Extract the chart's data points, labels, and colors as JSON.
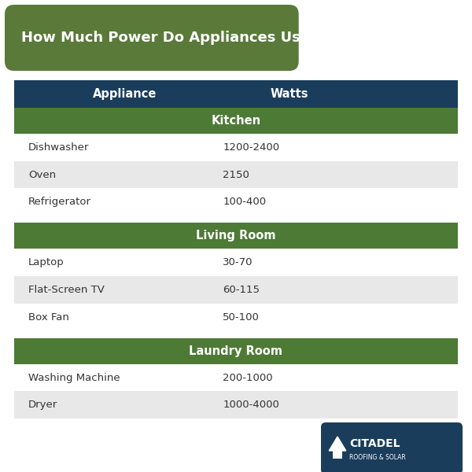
{
  "title": "How Much Power Do Appliances Use?",
  "title_bg_color": "#5a7a3a",
  "title_text_color": "#ffffff",
  "header_bg_color": "#1a3d5c",
  "header_text_color": "#ffffff",
  "section_bg_color": "#4d7a35",
  "section_text_color": "#ffffff",
  "row_alt_color": "#e8e8e8",
  "row_white_color": "#ffffff",
  "text_color": "#333333",
  "bg_color": "#ffffff",
  "col1_label": "Appliance",
  "col2_label": "Watts",
  "sections": [
    {
      "name": "Kitchen",
      "rows": [
        {
          "appliance": "Dishwasher",
          "watts": "1200-2400",
          "alt": false
        },
        {
          "appliance": "Oven",
          "watts": "2150",
          "alt": true
        },
        {
          "appliance": "Refrigerator",
          "watts": "100-400",
          "alt": false
        }
      ]
    },
    {
      "name": "Living Room",
      "rows": [
        {
          "appliance": "Laptop",
          "watts": "30-70",
          "alt": false
        },
        {
          "appliance": "Flat-Screen TV",
          "watts": "60-115",
          "alt": true
        },
        {
          "appliance": "Box Fan",
          "watts": "50-100",
          "alt": false
        }
      ]
    },
    {
      "name": "Laundry Room",
      "rows": [
        {
          "appliance": "Washing Machine",
          "watts": "200-1000",
          "alt": false
        },
        {
          "appliance": "Dryer",
          "watts": "1000-4000",
          "alt": true
        }
      ]
    }
  ],
  "logo_bg_color": "#1a3d5c",
  "logo_text": "CITADEL",
  "logo_subtext": "ROOFING & SOLAR"
}
